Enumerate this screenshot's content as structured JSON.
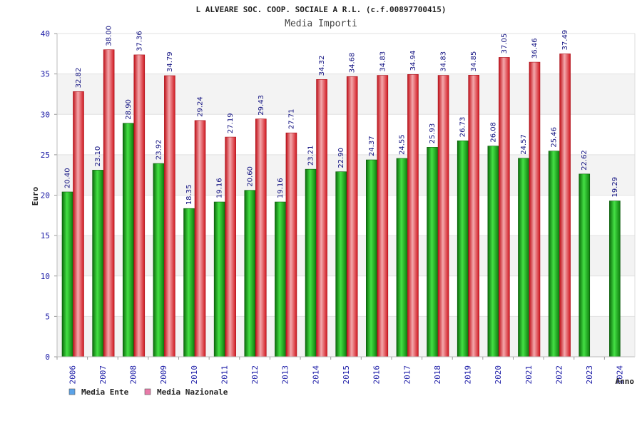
{
  "chart_data": {
    "type": "bar",
    "title": "L ALVEARE SOC. COOP. SOCIALE A R.L. (c.f.00897700415)",
    "subtitle": "Media Importi",
    "xlabel": "Anno",
    "ylabel": "Euro",
    "ylim": [
      0,
      40
    ],
    "yticks": [
      0,
      5,
      10,
      15,
      20,
      25,
      30,
      35,
      40
    ],
    "grid": true,
    "legend_position": "bottom-left",
    "categories": [
      "2006",
      "2007",
      "2008",
      "2009",
      "2010",
      "2011",
      "2012",
      "2013",
      "2014",
      "2015",
      "2016",
      "2017",
      "2018",
      "2019",
      "2020",
      "2021",
      "2022",
      "2023",
      "2024"
    ],
    "series": [
      {
        "name": "Media Ente",
        "color": "#1aa31a",
        "legend_color": "#5ba3e8",
        "values": [
          20.4,
          23.1,
          28.9,
          23.92,
          18.35,
          19.16,
          20.6,
          19.16,
          23.21,
          22.9,
          24.37,
          24.55,
          25.93,
          26.73,
          26.08,
          24.57,
          25.46,
          22.62,
          19.29
        ],
        "labels": [
          "20.40",
          "23.10",
          "28.90",
          "23.92",
          "18.35",
          "19.16",
          "20.60",
          "19.16",
          "23.21",
          "22.90",
          "24.37",
          "24.55",
          "25.93",
          "26.73",
          "26.08",
          "24.57",
          "25.46",
          "22.62",
          "19.29"
        ]
      },
      {
        "name": "Media Nazionale",
        "color": "#e8242c",
        "legend_color": "#e87aa8",
        "values": [
          32.82,
          38.0,
          37.36,
          34.79,
          29.24,
          27.19,
          29.43,
          27.71,
          34.32,
          34.68,
          34.83,
          34.94,
          34.83,
          34.85,
          37.05,
          36.46,
          37.49,
          null,
          null
        ],
        "labels": [
          "32.82",
          "38.00",
          "37.36",
          "34.79",
          "29.24",
          "27.19",
          "29.43",
          "27.71",
          "34.32",
          "34.68",
          "34.83",
          "34.94",
          "34.83",
          "34.85",
          "37.05",
          "36.46",
          "37.49",
          null,
          null
        ]
      }
    ]
  }
}
